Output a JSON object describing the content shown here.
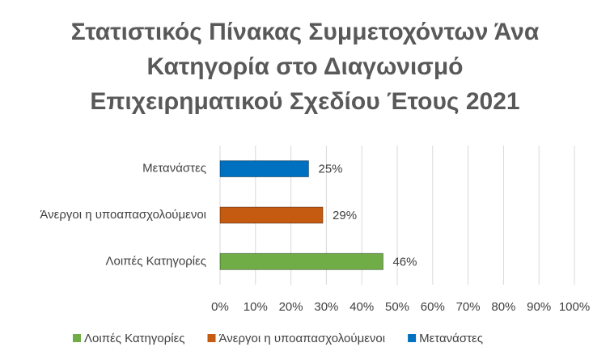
{
  "chart_data": {
    "type": "bar",
    "orientation": "horizontal",
    "title": "Στατιστικός Πίνακας Συμμετοχόντων Άνα Κατηγορία στο Διαγωνισμό Επιχειρηματικού Σχεδίου Έτους 2021",
    "categories": [
      "Λοιπές Κατηγορίες",
      "Άνεργοι η υποαπασχολούμενοι",
      "Μετανάστες"
    ],
    "series": [
      {
        "name": "Λοιπές Κατηγορίες",
        "color": "#70ad47",
        "values": [
          46,
          null,
          null
        ],
        "value_labels": [
          "46%",
          null,
          null
        ]
      },
      {
        "name": "Άνεργοι η υποαπασχολούμενοι",
        "color": "#c55a11",
        "values": [
          null,
          29,
          null
        ],
        "value_labels": [
          null,
          "29%",
          null
        ]
      },
      {
        "name": "Μετανάστες",
        "color": "#0070c0",
        "values": [
          null,
          null,
          25
        ],
        "value_labels": [
          null,
          null,
          "25%"
        ]
      }
    ],
    "xlim": [
      0,
      100
    ],
    "xticks": [
      {
        "value": 0,
        "label": "0%"
      },
      {
        "value": 10,
        "label": "10%"
      },
      {
        "value": 20,
        "label": "20%"
      },
      {
        "value": 30,
        "label": "30%"
      },
      {
        "value": 40,
        "label": "40%"
      },
      {
        "value": 50,
        "label": "50%"
      },
      {
        "value": 60,
        "label": "60%"
      },
      {
        "value": 70,
        "label": "70%"
      },
      {
        "value": 80,
        "label": "80%"
      },
      {
        "value": 90,
        "label": "90%"
      },
      {
        "value": 100,
        "label": "100%"
      }
    ],
    "grid": true,
    "legend": "bottom"
  }
}
